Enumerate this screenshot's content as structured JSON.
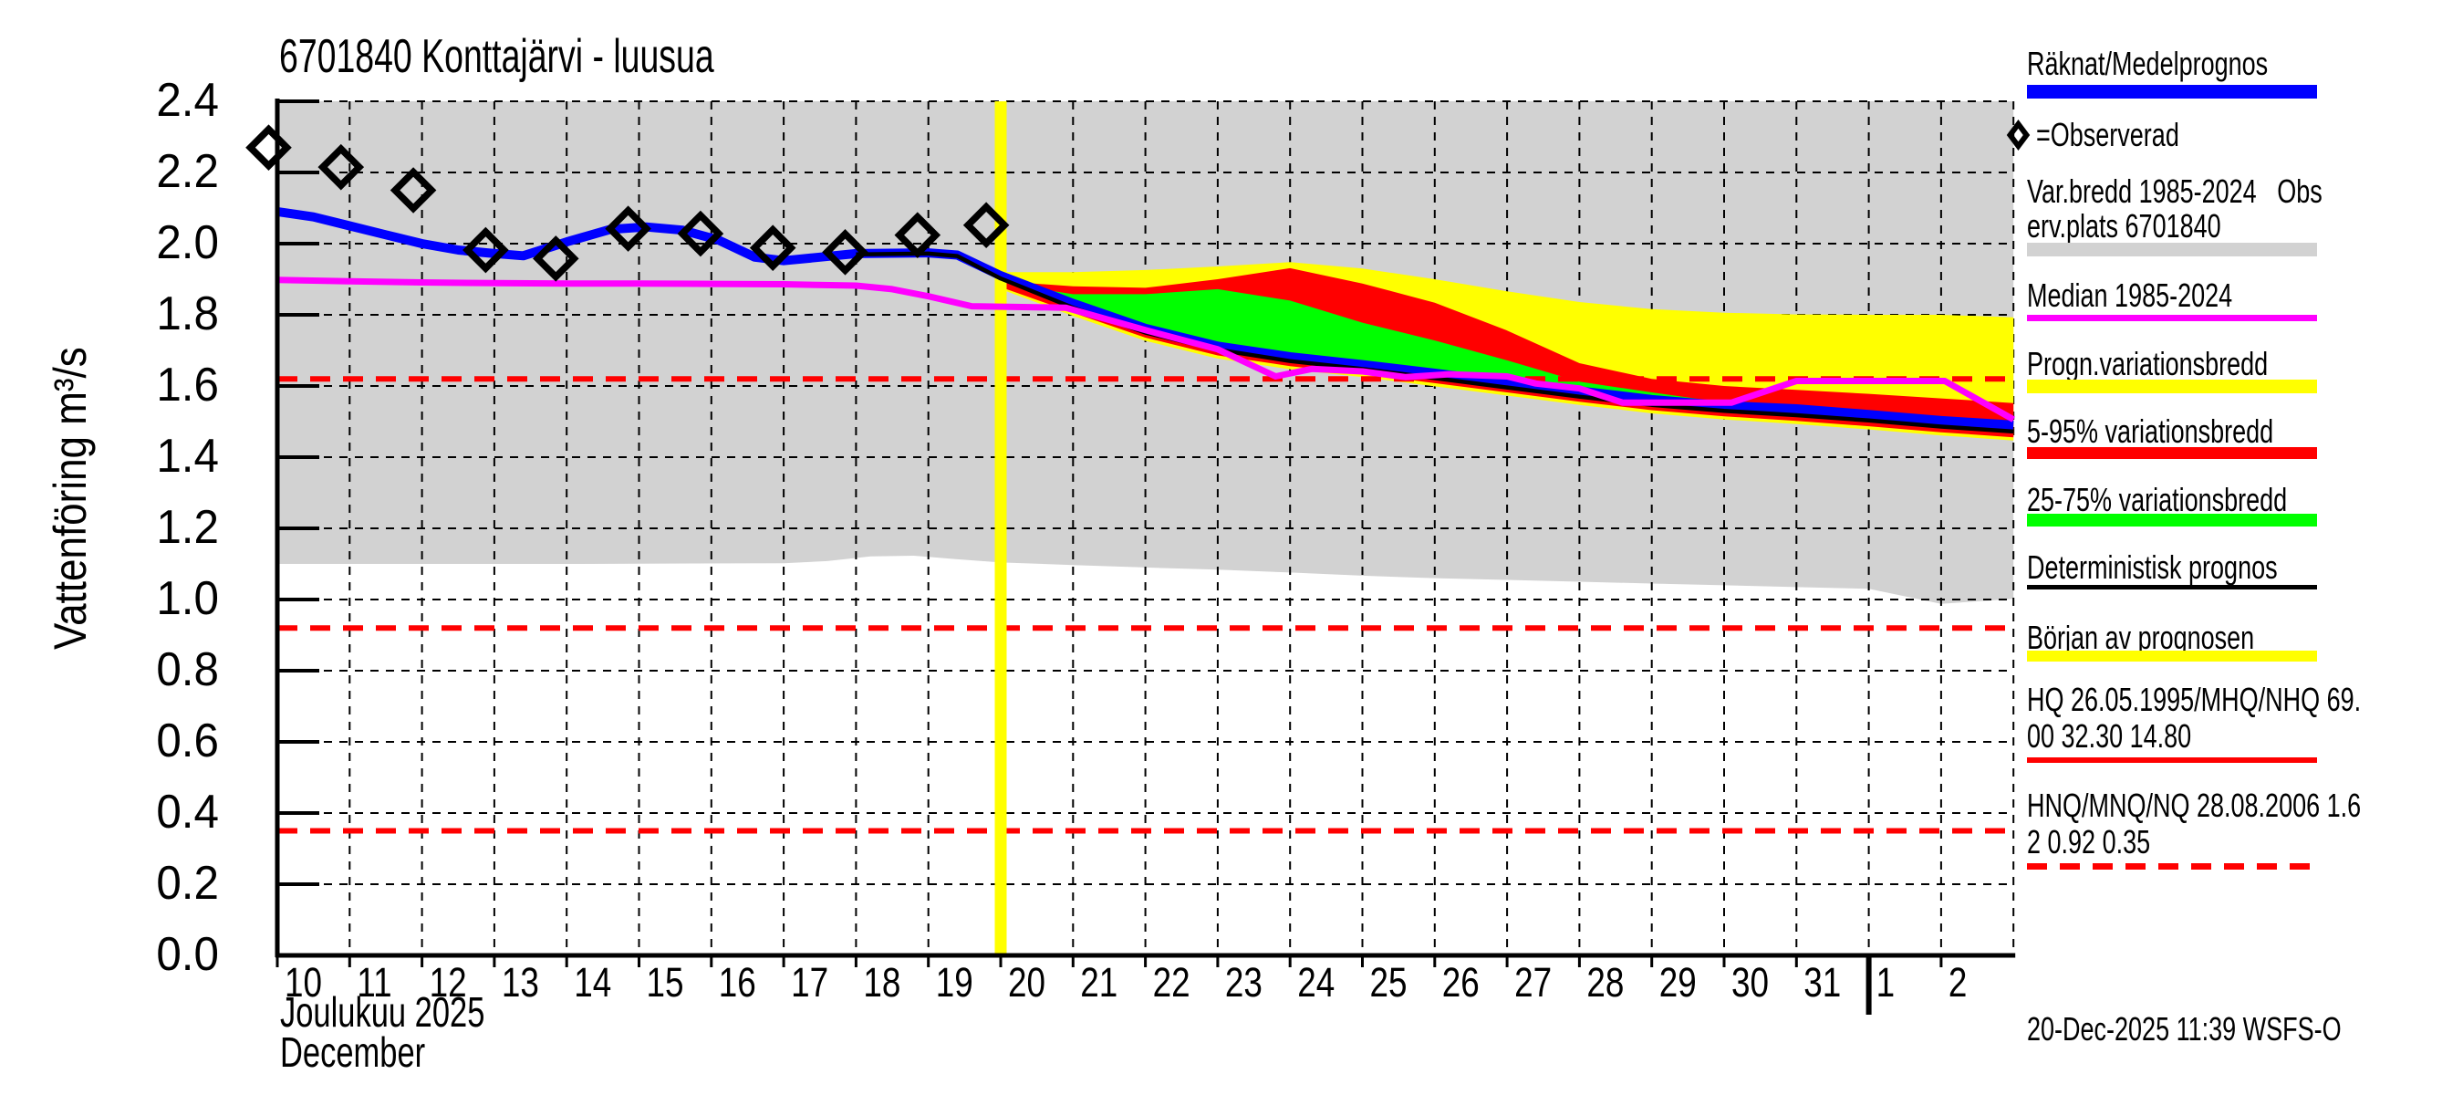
{
  "footer": {
    "timestamp": "20-Dec-2025 11:39 WSFS-O"
  },
  "legend": {
    "items": [
      {
        "id": "computed-mean-forecast",
        "lines": [
          "Räknat/Medelprognos"
        ],
        "swatch": "blue",
        "color": "#0000ff"
      },
      {
        "id": "observed",
        "lines": [
          "=Observerad"
        ],
        "swatch": "diamond",
        "color": "#000000"
      },
      {
        "id": "historical-range",
        "lines": [
          "Var.bredd 1985-2024   Obs",
          "erv.plats 6701840"
        ],
        "swatch": "gray",
        "color": "#d2d2d2"
      },
      {
        "id": "historical-median",
        "lines": [
          "Median 1985-2024"
        ],
        "swatch": "magenta",
        "color": "#ff00ff"
      },
      {
        "id": "forecast-range",
        "lines": [
          "Progn.variationsbredd"
        ],
        "swatch": "yellow",
        "color": "#ffff00"
      },
      {
        "id": "range-5-95",
        "lines": [
          "5-95% variationsbredd"
        ],
        "swatch": "red",
        "color": "#ff0000"
      },
      {
        "id": "range-25-75",
        "lines": [
          "25-75% variationsbredd"
        ],
        "swatch": "green",
        "color": "#00ff00"
      },
      {
        "id": "deterministic-forecast",
        "lines": [
          "Deterministisk prognos"
        ],
        "swatch": "black",
        "color": "#000000"
      },
      {
        "id": "forecast-start",
        "lines": [
          "Början av prognosen"
        ],
        "swatch": "yellow2",
        "color": "#ffff00"
      },
      {
        "id": "hq-values",
        "lines": [
          "HQ 26.05.1995/MHQ/NHQ 69.",
          "00 32.30 14.80"
        ],
        "swatch": "redline",
        "color": "#ff0000"
      },
      {
        "id": "nq-values",
        "lines": [
          "HNQ/MNQ/NQ 28.08.2006 1.6",
          "2 0.92 0.35"
        ],
        "swatch": "reddash",
        "color": "#ff0000"
      }
    ]
  },
  "chart_data": {
    "type": "line",
    "title": "6701840 Konttajärvi - luusua",
    "ylabel": "Vattenföring m³/s",
    "xlabel_fi": "Joulukuu 2025",
    "xlabel_sv": "December",
    "ylim": [
      0.0,
      2.4
    ],
    "x_domain_days": [
      10,
      34
    ],
    "grid": "dashed",
    "y_ticks": [
      [
        0.0,
        "0.0"
      ],
      [
        0.2,
        "0.2"
      ],
      [
        0.4,
        "0.4"
      ],
      [
        0.6,
        "0.6"
      ],
      [
        0.8,
        "0.8"
      ],
      [
        1.0,
        "1.0"
      ],
      [
        1.2,
        "1.2"
      ],
      [
        1.4,
        "1.4"
      ],
      [
        1.6,
        "1.6"
      ],
      [
        1.8,
        "1.8"
      ],
      [
        2.0,
        "2.0"
      ],
      [
        2.2,
        "2.2"
      ],
      [
        2.4,
        "2.4"
      ]
    ],
    "x_ticks": [
      [
        10,
        "10"
      ],
      [
        11,
        "11"
      ],
      [
        12,
        "12"
      ],
      [
        13,
        "13"
      ],
      [
        14,
        "14"
      ],
      [
        15,
        "15"
      ],
      [
        16,
        "16"
      ],
      [
        17,
        "17"
      ],
      [
        18,
        "18"
      ],
      [
        19,
        "19"
      ],
      [
        20,
        "20"
      ],
      [
        21,
        "21"
      ],
      [
        22,
        "22"
      ],
      [
        23,
        "23"
      ],
      [
        24,
        "24"
      ],
      [
        25,
        "25"
      ],
      [
        26,
        "26"
      ],
      [
        27,
        "27"
      ],
      [
        28,
        "28"
      ],
      [
        29,
        "29"
      ],
      [
        30,
        "30"
      ],
      [
        31,
        "31"
      ],
      [
        32,
        "1"
      ],
      [
        33,
        "2"
      ]
    ],
    "month_boundary_day": 32,
    "forecast_start_day": 20,
    "reference_lines": {
      "color": "#ff0000",
      "style": "dashed",
      "values": [
        1.62,
        0.92,
        0.35
      ]
    },
    "colors": {
      "mean": "#0000ff",
      "deterministic": "#000000",
      "median": "#ff00ff",
      "history_band": "#d2d2d2",
      "forecast_band": "#ffff00",
      "band_5_95": "#ff0000",
      "band_25_75": "#00ff00",
      "grid": "#000000",
      "forecast_start": "#ffff00"
    },
    "bands": {
      "history_range": {
        "upper_flat": 2.4,
        "lower": [
          [
            10,
            1.1
          ],
          [
            14,
            1.1
          ],
          [
            17,
            1.102
          ],
          [
            17.6,
            1.108
          ],
          [
            18.2,
            1.121
          ],
          [
            18.8,
            1.123
          ],
          [
            19.4,
            1.113
          ],
          [
            20,
            1.104
          ],
          [
            21,
            1.097
          ],
          [
            22,
            1.09
          ],
          [
            23,
            1.084
          ],
          [
            24,
            1.076
          ],
          [
            25,
            1.067
          ],
          [
            26,
            1.06
          ],
          [
            27,
            1.055
          ],
          [
            28,
            1.05
          ],
          [
            29,
            1.045
          ],
          [
            30,
            1.04
          ],
          [
            31,
            1.035
          ],
          [
            32,
            1.03
          ],
          [
            33,
            0.988
          ],
          [
            33.5,
            0.995
          ],
          [
            34,
            1.002
          ]
        ]
      },
      "forecast_range": {
        "upper": [
          [
            20,
            1.92
          ],
          [
            21,
            1.92
          ],
          [
            22,
            1.926
          ],
          [
            23,
            1.936
          ],
          [
            24,
            1.948
          ],
          [
            25,
            1.93
          ],
          [
            26,
            1.9
          ],
          [
            27,
            1.866
          ],
          [
            28,
            1.836
          ],
          [
            29,
            1.816
          ],
          [
            30,
            1.806
          ],
          [
            31,
            1.801
          ],
          [
            32,
            1.8
          ],
          [
            33,
            1.8
          ],
          [
            34,
            1.793
          ]
        ],
        "lower": [
          [
            20,
            1.872
          ],
          [
            21,
            1.797
          ],
          [
            22,
            1.727
          ],
          [
            23,
            1.677
          ],
          [
            24,
            1.647
          ],
          [
            25,
            1.625
          ],
          [
            26,
            1.599
          ],
          [
            27,
            1.573
          ],
          [
            28,
            1.547
          ],
          [
            29,
            1.523
          ],
          [
            30,
            1.506
          ],
          [
            31,
            1.493
          ],
          [
            32,
            1.478
          ],
          [
            33,
            1.461
          ],
          [
            34,
            1.447
          ]
        ]
      },
      "band_5_95": {
        "upper": [
          [
            20,
            1.895
          ],
          [
            21,
            1.88
          ],
          [
            22,
            1.876
          ],
          [
            23,
            1.9
          ],
          [
            24,
            1.931
          ],
          [
            25,
            1.888
          ],
          [
            26,
            1.834
          ],
          [
            27,
            1.756
          ],
          [
            28,
            1.664
          ],
          [
            29,
            1.62
          ],
          [
            30,
            1.6
          ],
          [
            31,
            1.589
          ],
          [
            32,
            1.578
          ],
          [
            33,
            1.565
          ],
          [
            34,
            1.552
          ]
        ],
        "lower": [
          [
            20,
            1.878
          ],
          [
            21,
            1.806
          ],
          [
            22,
            1.736
          ],
          [
            23,
            1.686
          ],
          [
            24,
            1.656
          ],
          [
            25,
            1.634
          ],
          [
            26,
            1.608
          ],
          [
            27,
            1.582
          ],
          [
            28,
            1.556
          ],
          [
            29,
            1.532
          ],
          [
            30,
            1.515
          ],
          [
            31,
            1.502
          ],
          [
            32,
            1.487
          ],
          [
            33,
            1.47
          ],
          [
            34,
            1.456
          ]
        ]
      },
      "band_25_75": {
        "upper": [
          [
            20.4,
            1.877
          ],
          [
            21,
            1.858
          ],
          [
            22,
            1.858
          ],
          [
            23,
            1.872
          ],
          [
            24,
            1.84
          ],
          [
            25,
            1.778
          ],
          [
            26,
            1.728
          ],
          [
            27,
            1.672
          ],
          [
            28,
            1.612
          ],
          [
            29,
            1.582
          ],
          [
            29.7,
            1.562
          ],
          [
            30.2,
            1.552
          ]
        ],
        "lower": [
          [
            20.4,
            1.869
          ],
          [
            21,
            1.827
          ],
          [
            22,
            1.757
          ],
          [
            23,
            1.707
          ],
          [
            24,
            1.677
          ],
          [
            25,
            1.655
          ],
          [
            26,
            1.631
          ],
          [
            27,
            1.605
          ],
          [
            28,
            1.58
          ],
          [
            29,
            1.556
          ],
          [
            29.7,
            1.543
          ],
          [
            30.2,
            1.54
          ]
        ]
      }
    },
    "series": [
      {
        "name": "Räknat/Medelprognos",
        "kind": "mean",
        "color": "#0000ff",
        "width": 10,
        "points": [
          [
            10,
            2.09
          ],
          [
            10.5,
            2.075
          ],
          [
            11,
            2.05
          ],
          [
            11.5,
            2.025
          ],
          [
            12,
            2.0
          ],
          [
            12.5,
            1.982
          ],
          [
            12.9,
            1.974
          ],
          [
            13.4,
            1.966
          ],
          [
            14,
            2.005
          ],
          [
            14.6,
            2.04
          ],
          [
            15.1,
            2.047
          ],
          [
            15.6,
            2.038
          ],
          [
            16.1,
            2.01
          ],
          [
            16.6,
            1.962
          ],
          [
            17,
            1.952
          ],
          [
            17.5,
            1.962
          ],
          [
            18,
            1.972
          ],
          [
            19,
            1.974
          ],
          [
            19.4,
            1.968
          ],
          [
            20,
            1.91
          ],
          [
            21,
            1.832
          ],
          [
            22,
            1.762
          ],
          [
            23,
            1.712
          ],
          [
            24,
            1.682
          ],
          [
            25,
            1.66
          ],
          [
            26,
            1.636
          ],
          [
            27,
            1.61
          ],
          [
            28,
            1.586
          ],
          [
            29,
            1.562
          ],
          [
            30,
            1.545
          ],
          [
            31,
            1.536
          ],
          [
            32,
            1.52
          ],
          [
            33,
            1.503
          ],
          [
            34,
            1.49
          ]
        ]
      },
      {
        "name": "Deterministisk prognos",
        "kind": "deterministic",
        "color": "#000000",
        "width": 4.5,
        "points": [
          [
            18,
            1.97
          ],
          [
            19,
            1.972
          ],
          [
            19.4,
            1.965
          ],
          [
            20,
            1.902
          ],
          [
            21,
            1.82
          ],
          [
            22,
            1.75
          ],
          [
            23,
            1.702
          ],
          [
            24,
            1.67
          ],
          [
            25,
            1.648
          ],
          [
            26,
            1.622
          ],
          [
            27,
            1.596
          ],
          [
            28,
            1.57
          ],
          [
            29,
            1.547
          ],
          [
            30,
            1.53
          ],
          [
            31,
            1.518
          ],
          [
            32,
            1.503
          ],
          [
            33,
            1.486
          ],
          [
            34,
            1.472
          ]
        ]
      },
      {
        "name": "Median 1985-2024",
        "kind": "median",
        "color": "#ff00ff",
        "width": 7,
        "points": [
          [
            10,
            1.898
          ],
          [
            11,
            1.894
          ],
          [
            12,
            1.891
          ],
          [
            13,
            1.889
          ],
          [
            14,
            1.888
          ],
          [
            15,
            1.888
          ],
          [
            16,
            1.887
          ],
          [
            17,
            1.886
          ],
          [
            18,
            1.882
          ],
          [
            18.5,
            1.872
          ],
          [
            19,
            1.852
          ],
          [
            19.6,
            1.824
          ],
          [
            20.9,
            1.82
          ],
          [
            22,
            1.757
          ],
          [
            23,
            1.703
          ],
          [
            23.8,
            1.627
          ],
          [
            24.3,
            1.648
          ],
          [
            25,
            1.641
          ],
          [
            25.6,
            1.625
          ],
          [
            26.2,
            1.633
          ],
          [
            27,
            1.627
          ],
          [
            27.4,
            1.607
          ],
          [
            28,
            1.593
          ],
          [
            28.6,
            1.553
          ],
          [
            30.1,
            1.553
          ],
          [
            31,
            1.614
          ],
          [
            33.05,
            1.614
          ],
          [
            34,
            1.506
          ]
        ]
      },
      {
        "name": "Observerad",
        "kind": "observed",
        "color": "#000000",
        "marker": "diamond",
        "points": [
          [
            9.88,
            2.27
          ],
          [
            10.88,
            2.215
          ],
          [
            11.88,
            2.15
          ],
          [
            12.88,
            1.982
          ],
          [
            13.85,
            1.958
          ],
          [
            14.85,
            2.042
          ],
          [
            15.85,
            2.028
          ],
          [
            16.85,
            1.988
          ],
          [
            17.85,
            1.976
          ],
          [
            18.85,
            2.024
          ],
          [
            19.8,
            2.052
          ]
        ]
      }
    ]
  }
}
